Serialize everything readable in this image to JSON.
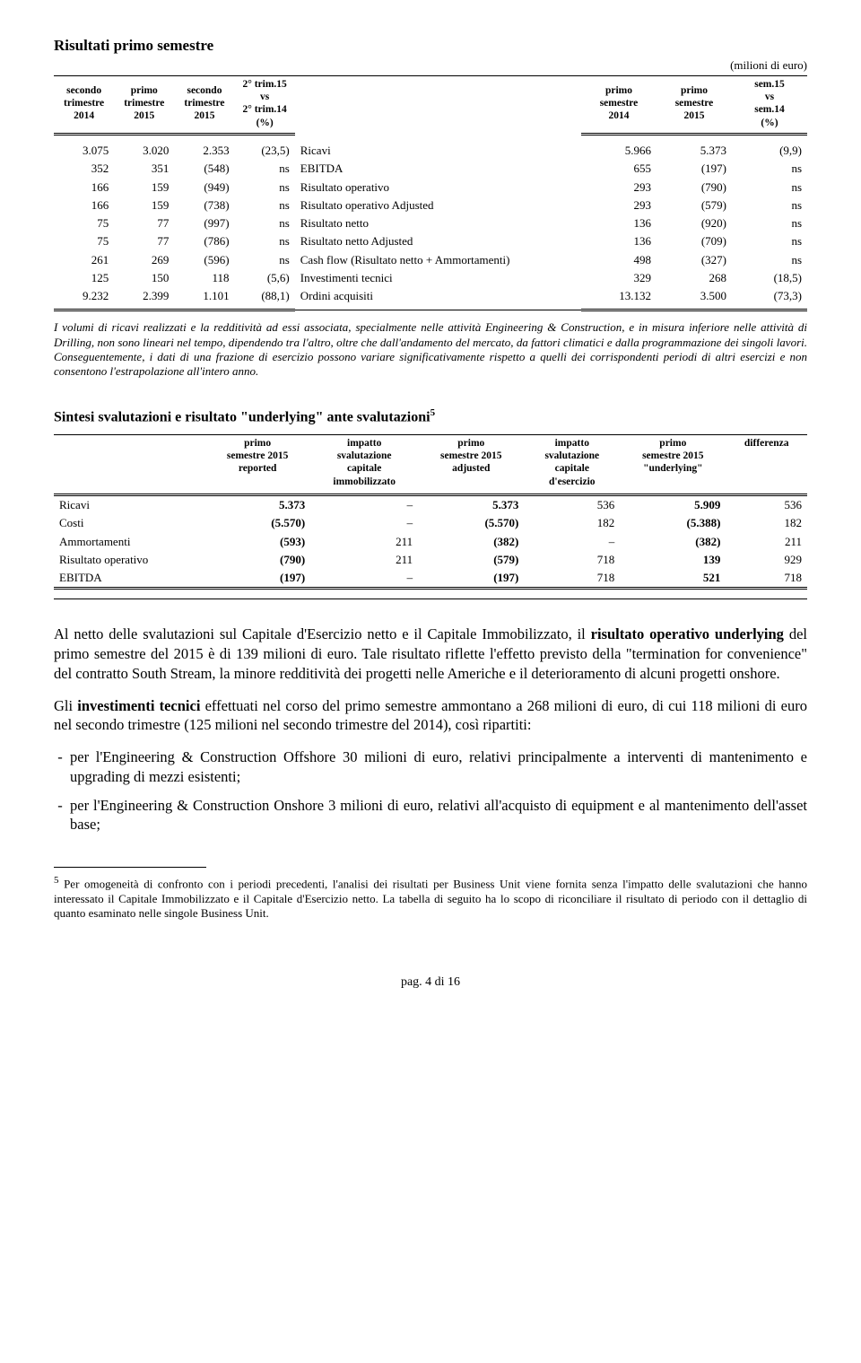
{
  "title": "Risultati primo semestre",
  "unit": "(milioni di euro)",
  "table1": {
    "headers": {
      "c1": "secondo\ntrimestre\n2014",
      "c2": "primo\ntrimestre\n2015",
      "c3": "secondo\ntrimestre\n2015",
      "c4": "2° trim.15\nvs\n2° trim.14\n(%)",
      "c5": "",
      "c6": "primo\nsemestre\n2014",
      "c7": "primo\nsemestre\n2015",
      "c8": "sem.15\nvs\nsem.14\n(%)"
    },
    "rows": [
      {
        "c1": "3.075",
        "c2": "3.020",
        "c3": "2.353",
        "c4": "(23,5)",
        "desc": "Ricavi",
        "c6": "5.966",
        "c7": "5.373",
        "c8": "(9,9)"
      },
      {
        "c1": "352",
        "c2": "351",
        "c3": "(548)",
        "c4": "ns",
        "desc": "EBITDA",
        "c6": "655",
        "c7": "(197)",
        "c8": "ns"
      },
      {
        "c1": "166",
        "c2": "159",
        "c3": "(949)",
        "c4": "ns",
        "desc": "Risultato operativo",
        "c6": "293",
        "c7": "(790)",
        "c8": "ns"
      },
      {
        "c1": "166",
        "c2": "159",
        "c3": "(738)",
        "c4": "ns",
        "desc": "Risultato operativo Adjusted",
        "c6": "293",
        "c7": "(579)",
        "c8": "ns"
      },
      {
        "c1": "75",
        "c2": "77",
        "c3": "(997)",
        "c4": "ns",
        "desc": "Risultato netto",
        "c6": "136",
        "c7": "(920)",
        "c8": "ns"
      },
      {
        "c1": "75",
        "c2": "77",
        "c3": "(786)",
        "c4": "ns",
        "desc": "Risultato netto Adjusted",
        "c6": "136",
        "c7": "(709)",
        "c8": "ns"
      },
      {
        "c1": "261",
        "c2": "269",
        "c3": "(596)",
        "c4": "ns",
        "desc": "Cash flow (Risultato netto + Ammortamenti)",
        "c6": "498",
        "c7": "(327)",
        "c8": "ns"
      },
      {
        "c1": "125",
        "c2": "150",
        "c3": "118",
        "c4": "(5,6)",
        "desc": "Investimenti tecnici",
        "c6": "329",
        "c7": "268",
        "c8": "(18,5)"
      },
      {
        "c1": "9.232",
        "c2": "2.399",
        "c3": "1.101",
        "c4": "(88,1)",
        "desc": "Ordini acquisiti",
        "c6": "13.132",
        "c7": "3.500",
        "c8": "(73,3)"
      }
    ]
  },
  "footnote1": "I volumi di ricavi realizzati e la redditività ad essi associata, specialmente nelle attività Engineering & Construction, e in misura inferiore nelle attività di Drilling, non sono lineari nel tempo, dipendendo tra l'altro, oltre che dall'andamento del mercato, da fattori climatici e dalla programmazione dei singoli lavori. Conseguentemente, i dati di una frazione di esercizio possono variare significativamente rispetto a quelli dei corrispondenti periodi di altri esercizi e non consentono l'estrapolazione all'intero anno.",
  "section2_title": "Sintesi svalutazioni e risultato \"underlying\" ante svalutazioni",
  "section2_sup": "5",
  "table2": {
    "headers": {
      "h1": "primo\nsemestre 2015\nreported",
      "h2": "impatto\nsvalutazione\ncapitale\nimmobilizzato",
      "h3": "primo\nsemestre 2015\nadjusted",
      "h4": "impatto\nsvalutazione\ncapitale\nd'esercizio",
      "h5": "primo\nsemestre 2015\n\"underlying\"",
      "h6": "differenza"
    },
    "rows": [
      {
        "label": "Ricavi",
        "c1": "5.373",
        "c2": "–",
        "c3": "5.373",
        "c4": "536",
        "c5": "5.909",
        "c6": "536"
      },
      {
        "label": "Costi",
        "c1": "(5.570)",
        "c2": "–",
        "c3": "(5.570)",
        "c4": "182",
        "c5": "(5.388)",
        "c6": "182"
      },
      {
        "label": "Ammortamenti",
        "c1": "(593)",
        "c2": "211",
        "c3": "(382)",
        "c4": "–",
        "c5": "(382)",
        "c6": "211"
      },
      {
        "label": "Risultato operativo",
        "c1": "(790)",
        "c2": "211",
        "c3": "(579)",
        "c4": "718",
        "c5": "139",
        "c6": "929"
      },
      {
        "label": "EBITDA",
        "c1": "(197)",
        "c2": "–",
        "c3": "(197)",
        "c4": "718",
        "c5": "521",
        "c6": "718"
      }
    ],
    "bold_cols": [
      "c1",
      "c3",
      "c5"
    ]
  },
  "body": {
    "p1": "Al netto delle svalutazioni sul Capitale d'Esercizio netto e il Capitale Immobilizzato, il ",
    "p1b": "risultato operativo underlying",
    "p1c": " del primo semestre del 2015 è di 139 milioni di euro. Tale risultato riflette l'effetto previsto della \"termination for convenience\" del contratto South Stream, la minore redditività dei progetti nelle Americhe e il deterioramento di alcuni progetti onshore.",
    "p2a": "Gli ",
    "p2b": "investimenti tecnici",
    "p2c": " effettuati nel corso del primo semestre ammontano a 268 milioni di euro, di cui 118 milioni di euro nel secondo trimestre (125 milioni nel secondo trimestre del 2014), così ripartiti:",
    "li1": "per l'Engineering & Construction Offshore 30 milioni di euro, relativi principalmente a interventi di mantenimento e upgrading di mezzi esistenti;",
    "li2": "per l'Engineering & Construction Onshore 3 milioni di euro, relativi all'acquisto di equipment e al mantenimento dell'asset base;"
  },
  "note5": "Per omogeneità di confronto con i periodi precedenti, l'analisi dei risultati per Business Unit viene fornita senza l'impatto delle svalutazioni che hanno interessato il Capitale Immobilizzato e il Capitale d'Esercizio netto. La tabella di seguito ha lo scopo di riconciliare il risultato di periodo con il dettaglio di quanto esaminato nelle singole Business Unit.",
  "note5_sup": "5",
  "pagenum": "pag. 4 di 16"
}
